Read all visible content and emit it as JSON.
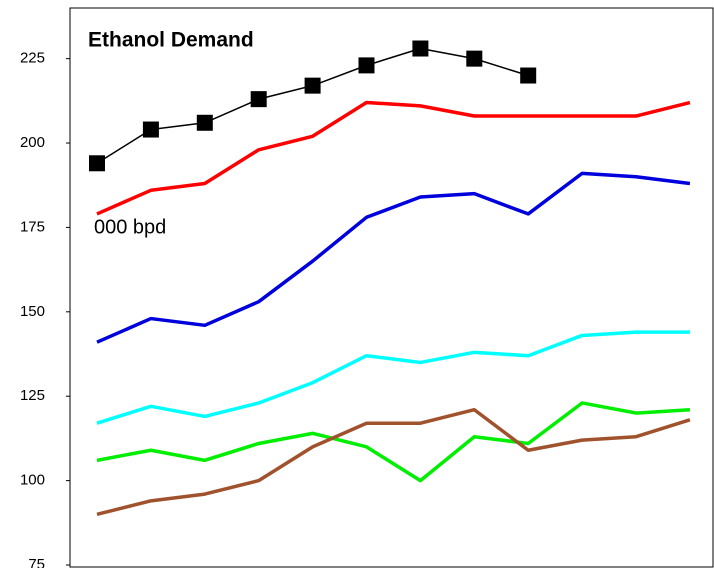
{
  "chart_data": {
    "type": "line",
    "title": "Ethanol Demand",
    "annotation": "000 bpd",
    "categories": [
      null,
      null,
      null,
      null,
      null,
      null,
      null,
      null,
      null,
      null,
      null,
      null
    ],
    "ylim": [
      75,
      240
    ],
    "yticks": [
      75,
      100,
      125,
      150,
      175,
      200,
      225
    ],
    "grid": false,
    "series": [
      {
        "color": "#000000",
        "marker": "square",
        "values": [
          194,
          204,
          206,
          213,
          217,
          223,
          228,
          225,
          220,
          null,
          null,
          null
        ]
      },
      {
        "color": "#ff0000",
        "values": [
          179,
          186,
          188,
          198,
          202,
          212,
          211,
          208,
          208,
          208,
          208,
          212
        ]
      },
      {
        "color": "#0000dd",
        "values": [
          141,
          148,
          146,
          153,
          165,
          178,
          184,
          185,
          179,
          191,
          190,
          188
        ]
      },
      {
        "color": "#00ffff",
        "values": [
          117,
          122,
          119,
          123,
          129,
          137,
          135,
          138,
          137,
          143,
          144,
          144
        ]
      },
      {
        "color": "#00ee00",
        "values": [
          106,
          109,
          106,
          111,
          114,
          110,
          100,
          113,
          111,
          123,
          120,
          121
        ]
      },
      {
        "color": "#a0522d",
        "values": [
          90,
          94,
          96,
          100,
          110,
          117,
          117,
          121,
          109,
          112,
          113,
          118
        ]
      }
    ]
  }
}
